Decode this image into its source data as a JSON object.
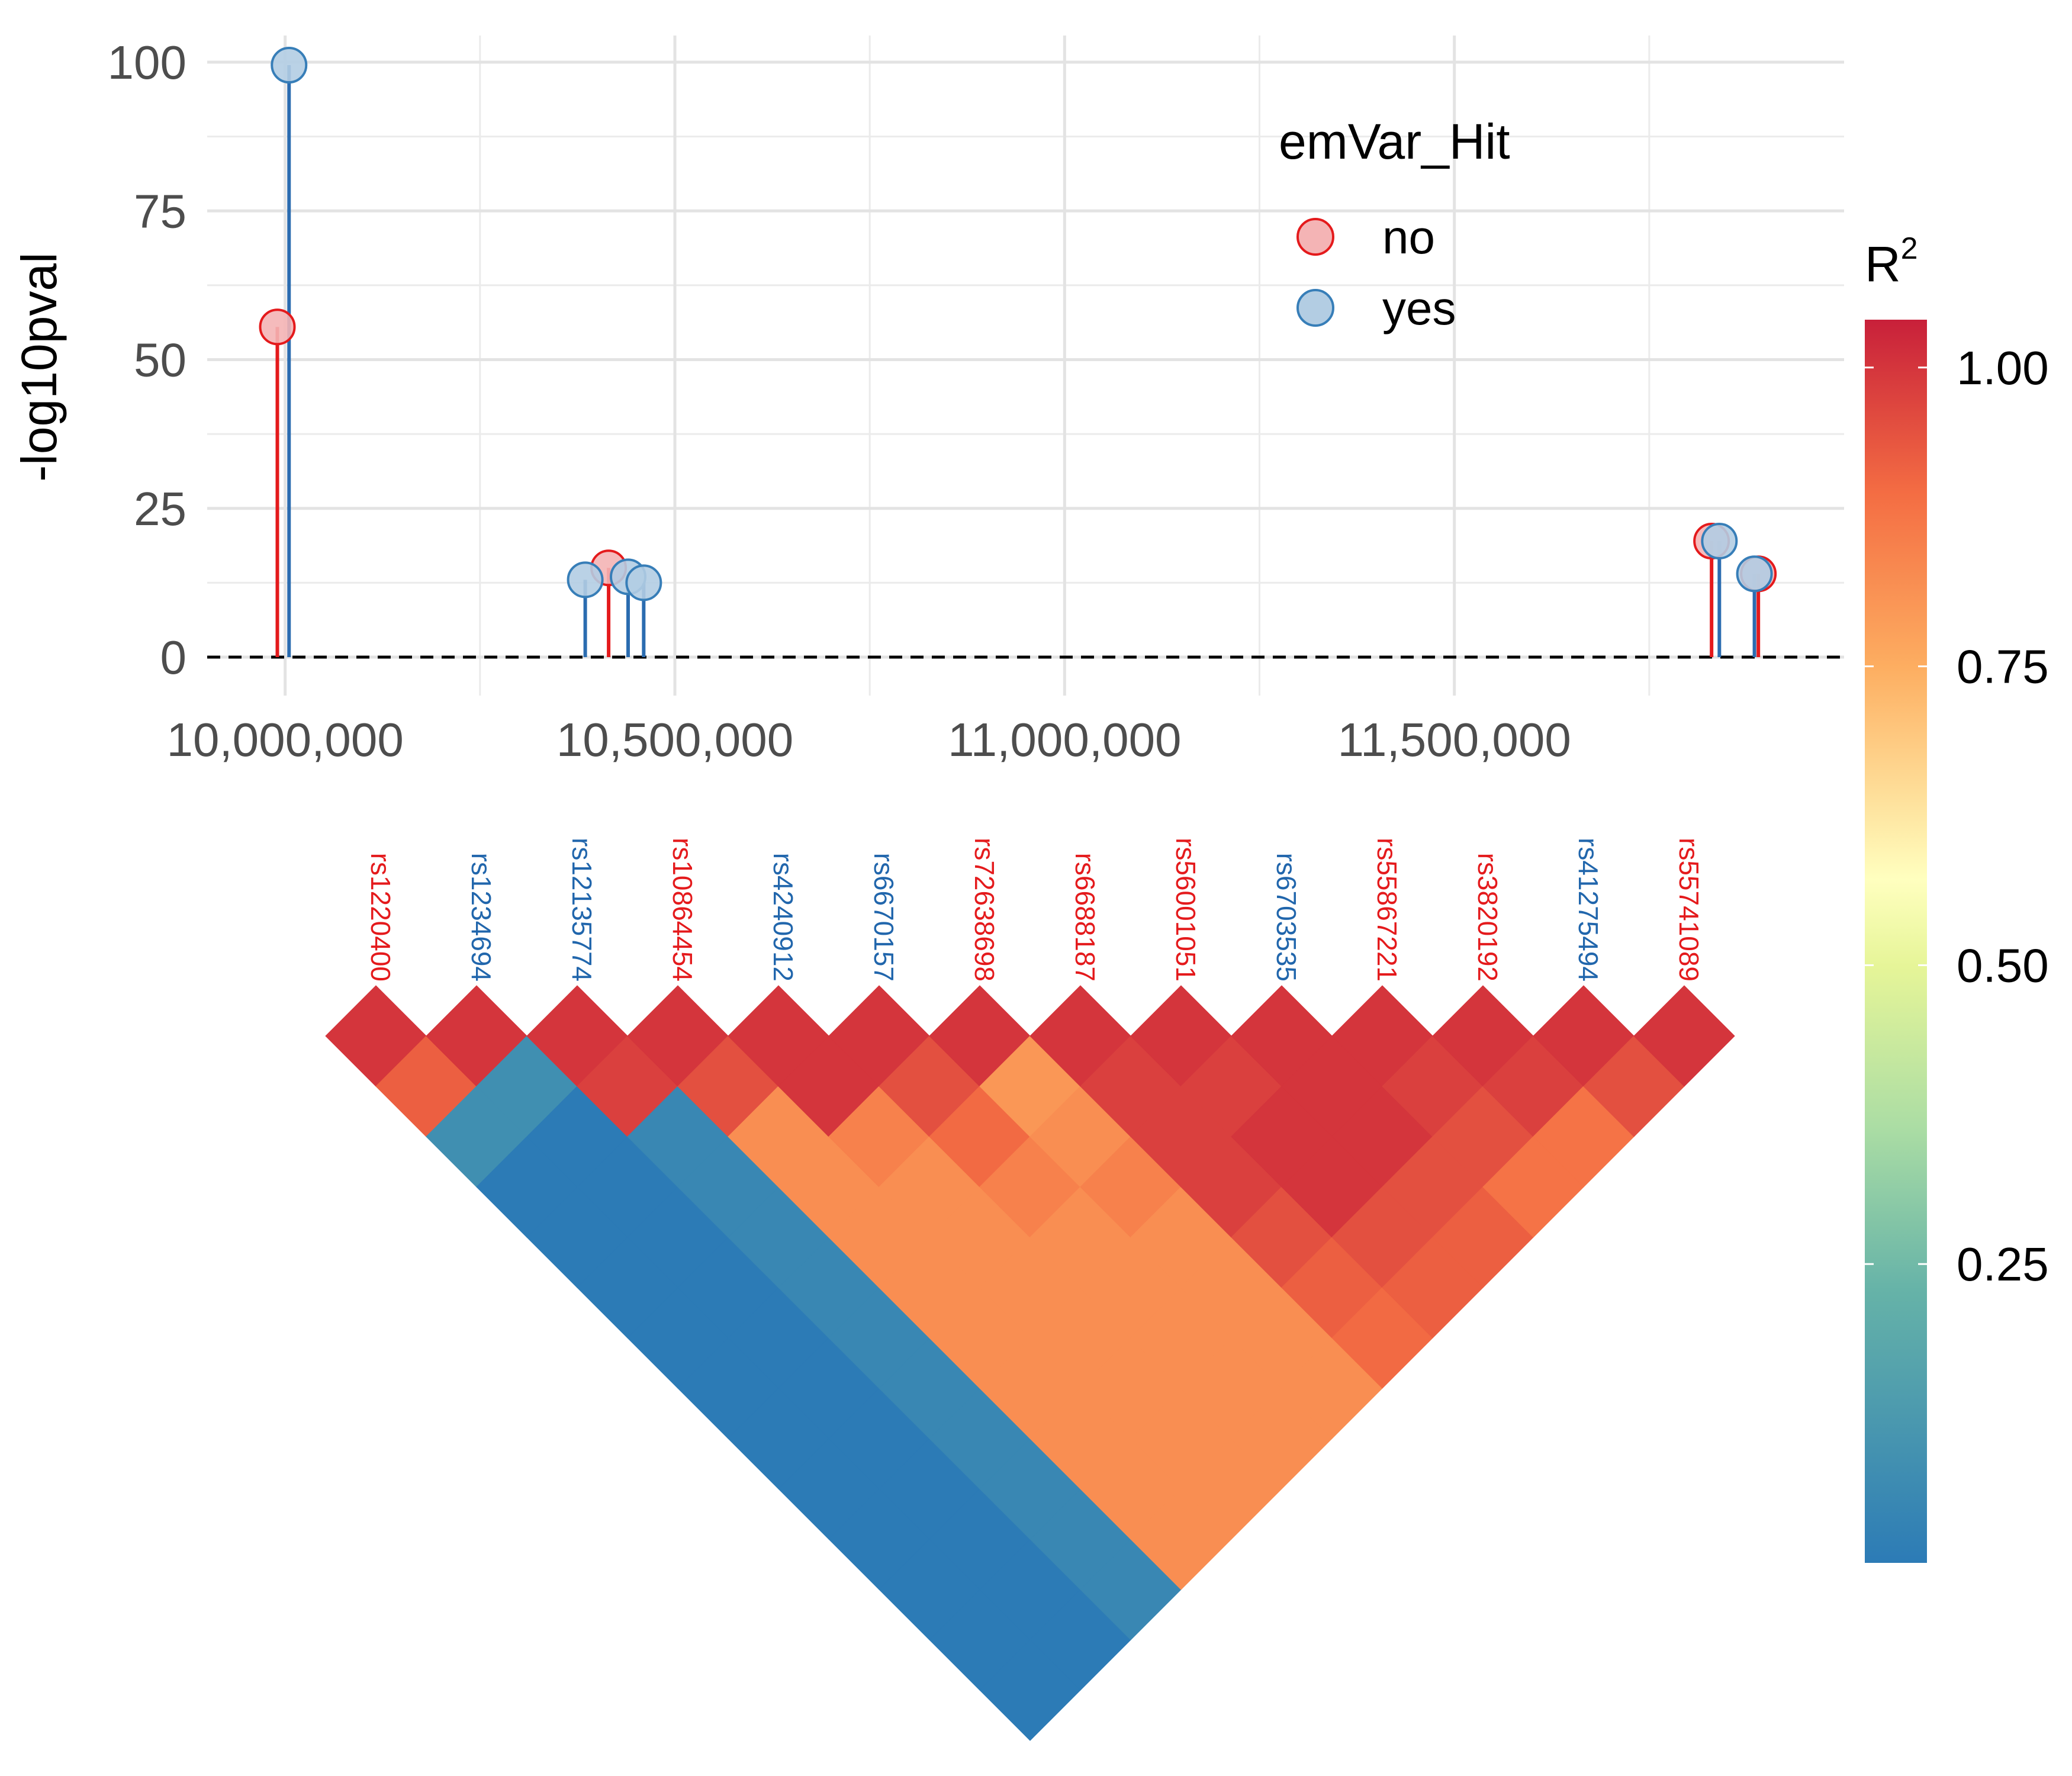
{
  "chart_data": [
    {
      "type": "scatter",
      "subtype": "lollipop",
      "ylabel": "-log10pval",
      "xlabel": "",
      "xlim": [
        9900000,
        12000000
      ],
      "ylim": [
        0,
        100
      ],
      "x_ticks": [
        10000000,
        10500000,
        11000000,
        11500000
      ],
      "x_tick_labels": [
        "10,000,000",
        "10,500,000",
        "11,000,000",
        "11,500,000"
      ],
      "y_ticks": [
        0,
        25,
        50,
        75,
        100
      ],
      "y_tick_labels": [
        "0",
        "25",
        "50",
        "75",
        "100"
      ],
      "hline": 0,
      "grid": true,
      "legend": {
        "title": "emVar_Hit",
        "placement": "top-right",
        "entries": [
          {
            "label": "no",
            "color": "#e41a1c"
          },
          {
            "label": "yes",
            "color": "#377eb8"
          }
        ]
      },
      "series": [
        {
          "name": "no",
          "color": "#e41a1c",
          "points": [
            {
              "x": 9990000,
              "y": 55.5
            },
            {
              "x": 10415000,
              "y": 15
            },
            {
              "x": 11830000,
              "y": 19.5
            },
            {
              "x": 11890000,
              "y": 14
            }
          ]
        },
        {
          "name": "yes",
          "color": "#377eb8",
          "points": [
            {
              "x": 10005000,
              "y": 99.5
            },
            {
              "x": 10385000,
              "y": 13
            },
            {
              "x": 10440000,
              "y": 13.5
            },
            {
              "x": 10460000,
              "y": 12.5
            },
            {
              "x": 11840000,
              "y": 19.5
            },
            {
              "x": 11885000,
              "y": 14
            }
          ]
        }
      ]
    },
    {
      "type": "heatmap",
      "subtype": "ld-triangle",
      "snps": [
        {
          "id": "rs1220400",
          "emvar": "no"
        },
        {
          "id": "rs1234694",
          "emvar": "yes"
        },
        {
          "id": "rs12135774",
          "emvar": "yes"
        },
        {
          "id": "rs10864454",
          "emvar": "no"
        },
        {
          "id": "rs4240912",
          "emvar": "yes"
        },
        {
          "id": "rs6670157",
          "emvar": "yes"
        },
        {
          "id": "rs72638698",
          "emvar": "no"
        },
        {
          "id": "rs6688187",
          "emvar": "no"
        },
        {
          "id": "rs56001051",
          "emvar": "no"
        },
        {
          "id": "rs6703535",
          "emvar": "yes"
        },
        {
          "id": "rs55867221",
          "emvar": "no"
        },
        {
          "id": "rs3820192",
          "emvar": "no"
        },
        {
          "id": "rs41275494",
          "emvar": "yes"
        },
        {
          "id": "rs55741089",
          "emvar": "no"
        }
      ],
      "label_colors": {
        "no": "#e41a1c",
        "yes": "#2166ac"
      },
      "r2_matrix": [
        [
          1.0,
          0.92,
          0.08,
          0.0,
          0.0,
          0.0,
          0.0,
          0.0,
          0.0,
          0.0,
          0.0,
          0.0,
          0.0,
          0.0
        ],
        [
          0.92,
          1.0,
          0.08,
          0.0,
          0.0,
          0.0,
          0.0,
          0.0,
          0.0,
          0.0,
          0.0,
          0.0,
          0.0,
          0.0
        ],
        [
          0.08,
          0.08,
          1.0,
          0.98,
          0.05,
          0.05,
          0.05,
          0.05,
          0.05,
          0.05,
          0.05,
          0.05,
          0.05,
          0.05
        ],
        [
          0.0,
          0.0,
          0.98,
          1.0,
          0.95,
          0.82,
          0.82,
          0.82,
          0.82,
          0.82,
          0.82,
          0.82,
          0.82,
          0.82
        ],
        [
          0.0,
          0.0,
          0.05,
          0.95,
          1.0,
          1.0,
          0.85,
          0.82,
          0.82,
          0.82,
          0.82,
          0.82,
          0.82,
          0.82
        ],
        [
          0.0,
          0.0,
          0.05,
          0.82,
          1.0,
          1.0,
          0.95,
          0.9,
          0.85,
          0.82,
          0.82,
          0.82,
          0.82,
          0.82
        ],
        [
          0.0,
          0.0,
          0.05,
          0.82,
          0.85,
          0.95,
          1.0,
          0.8,
          0.82,
          0.85,
          0.82,
          0.82,
          0.82,
          0.82
        ],
        [
          0.0,
          0.0,
          0.05,
          0.82,
          0.82,
          0.9,
          0.8,
          1.0,
          0.98,
          0.98,
          0.98,
          0.95,
          0.92,
          0.9
        ],
        [
          0.0,
          0.0,
          0.05,
          0.82,
          0.82,
          0.85,
          0.82,
          0.98,
          1.0,
          0.98,
          1.0,
          1.0,
          0.95,
          0.92
        ],
        [
          0.0,
          0.0,
          0.05,
          0.82,
          0.82,
          0.82,
          0.85,
          0.98,
          0.98,
          1.0,
          1.0,
          1.0,
          0.95,
          0.92
        ],
        [
          0.0,
          0.0,
          0.05,
          0.82,
          0.82,
          0.82,
          0.82,
          0.98,
          1.0,
          1.0,
          1.0,
          0.98,
          0.95,
          0.88
        ],
        [
          0.0,
          0.0,
          0.05,
          0.82,
          0.82,
          0.82,
          0.82,
          0.95,
          1.0,
          1.0,
          0.98,
          1.0,
          0.98,
          0.88
        ],
        [
          0.0,
          0.0,
          0.05,
          0.82,
          0.82,
          0.82,
          0.82,
          0.92,
          0.95,
          0.95,
          0.95,
          0.98,
          1.0,
          0.95
        ],
        [
          0.0,
          0.0,
          0.05,
          0.82,
          0.82,
          0.82,
          0.82,
          0.9,
          0.92,
          0.92,
          0.88,
          0.88,
          0.95,
          1.0
        ]
      ],
      "colorbar": {
        "title": "R",
        "title_superscript": "2",
        "ticks": [
          0.25,
          0.5,
          0.75,
          1.0
        ],
        "tick_labels": [
          "0.25",
          "0.50",
          "0.75",
          "1.00"
        ],
        "range": [
          0,
          1.04
        ],
        "palette": "Spectral (reversed)",
        "stops": [
          "#2c7bb6",
          "#abdda4",
          "#ffffbf",
          "#fdae61",
          "#d7191c"
        ]
      }
    }
  ]
}
